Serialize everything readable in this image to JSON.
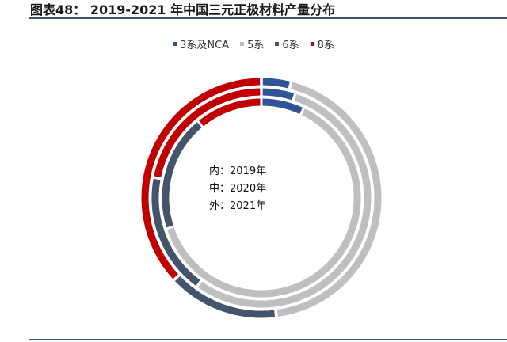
{
  "title": "图表48： 2019-2021 年中国三元正极材料产量分布",
  "chart_data": {
    "type": "pie",
    "subtype": "multi-ring donut",
    "categories": [
      "3系及NCA",
      "5系",
      "6系",
      "8系"
    ],
    "colors": [
      "#2f5597",
      "#bfbfbf",
      "#44546a",
      "#c00000"
    ],
    "legend_position": "top",
    "series": [
      {
        "name": "2019",
        "ring": "内",
        "values": [
          7,
          63,
          19,
          11
        ]
      },
      {
        "name": "2020",
        "ring": "中",
        "values": [
          5,
          55,
          18,
          22
        ]
      },
      {
        "name": "2021",
        "ring": "外",
        "values": [
          4,
          44,
          15,
          37
        ]
      }
    ],
    "center_labels": [
      "内：2019年",
      "中：2020年",
      "外：2021年"
    ]
  }
}
